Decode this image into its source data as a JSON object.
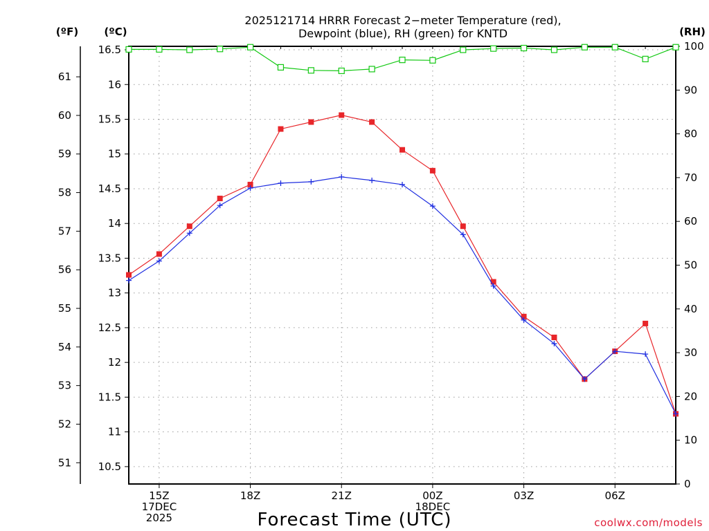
{
  "title_line1": "2025121714 HRRR Forecast 2−meter Temperature (red),",
  "title_line2": "Dewpoint (blue), RH (green) for KNTD",
  "credit": "coolwx.com/models",
  "colors": {
    "temperature": "#e8262a",
    "dewpoint": "#1f2ee0",
    "rh": "#11c811",
    "grid": "#9a9a9a",
    "credit": "#e0203a"
  },
  "chart_data": {
    "type": "line",
    "title": "2025121714 HRRR Forecast 2−meter Temperature (red), Dewpoint (blue), RH (green) for KNTD",
    "xlabel": "Forecast Time (UTC)",
    "x_hours": [
      14,
      15,
      16,
      17,
      18,
      19,
      20,
      21,
      22,
      23,
      0,
      1,
      2,
      3,
      4,
      5,
      6,
      7,
      8
    ],
    "x_ticks": [
      {
        "hour_index": 1,
        "lines": [
          "15Z",
          "17DEC",
          "2025"
        ]
      },
      {
        "hour_index": 4,
        "lines": [
          "18Z"
        ]
      },
      {
        "hour_index": 7,
        "lines": [
          "21Z"
        ]
      },
      {
        "hour_index": 10,
        "lines": [
          "00Z",
          "18DEC"
        ]
      },
      {
        "hour_index": 13,
        "lines": [
          "03Z"
        ]
      },
      {
        "hour_index": 16,
        "lines": [
          "06Z"
        ]
      }
    ],
    "y_left_celsius": {
      "label": "(ºC)",
      "range": [
        10.25,
        16.55
      ],
      "ticks": [
        10.5,
        11,
        11.5,
        12,
        12.5,
        13,
        13.5,
        14,
        14.5,
        15,
        15.5,
        16,
        16.5
      ]
    },
    "y_left_fahrenheit": {
      "label": "(ºF)",
      "ticks": [
        51,
        52,
        53,
        54,
        55,
        56,
        57,
        58,
        59,
        60,
        61
      ]
    },
    "y_right_rh": {
      "label": "(RH)",
      "range": [
        0,
        100
      ],
      "ticks": [
        0,
        10,
        20,
        30,
        40,
        50,
        60,
        70,
        80,
        90,
        100
      ]
    },
    "series": [
      {
        "name": "Temperature",
        "units": "°C",
        "color": "#e8262a",
        "marker": "filled-square",
        "values": [
          13.26,
          13.56,
          13.96,
          14.36,
          14.56,
          15.36,
          15.46,
          15.56,
          15.46,
          15.06,
          14.76,
          13.96,
          13.16,
          12.66,
          12.36,
          11.76,
          12.16,
          12.56,
          11.26
        ]
      },
      {
        "name": "Dewpoint",
        "units": "°C",
        "color": "#1f2ee0",
        "marker": "plus",
        "values": [
          13.18,
          13.46,
          13.86,
          14.26,
          14.51,
          14.58,
          14.6,
          14.67,
          14.62,
          14.56,
          14.25,
          13.84,
          13.1,
          12.61,
          12.27,
          11.76,
          12.16,
          12.12,
          11.26
        ]
      },
      {
        "name": "RH",
        "units": "%",
        "color": "#11c811",
        "marker": "open-square",
        "values": [
          99.3,
          99.3,
          99.2,
          99.4,
          99.8,
          95.2,
          94.5,
          94.4,
          94.8,
          96.9,
          96.8,
          99.2,
          99.5,
          99.6,
          99.2,
          99.8,
          99.8,
          97.1,
          99.8
        ]
      }
    ]
  }
}
